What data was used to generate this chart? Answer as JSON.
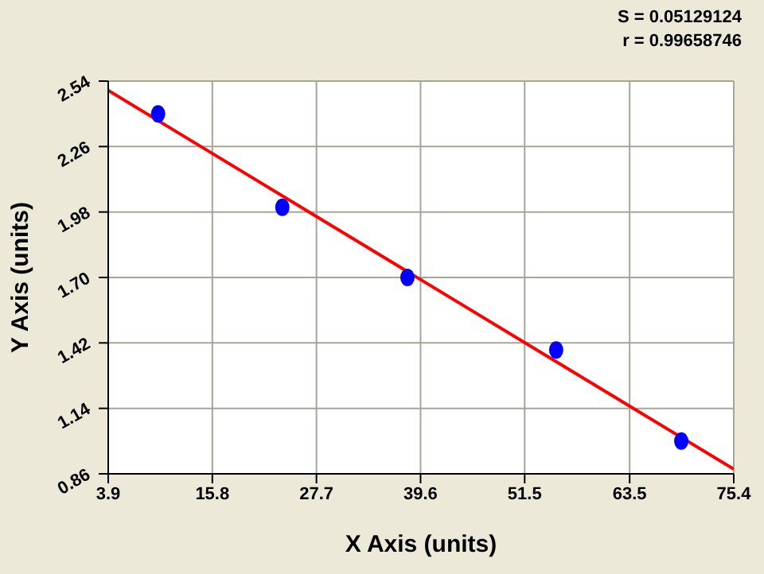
{
  "chart_data": {
    "type": "scatter",
    "xlabel": "X Axis (units)",
    "ylabel": "Y Axis (units)",
    "annotations": [
      "S = 0.05129124",
      "r = 0.99658746"
    ],
    "xlim": [
      3.9,
      75.4
    ],
    "xticks": [
      3.9,
      15.8,
      27.7,
      39.6,
      51.5,
      63.5,
      75.4
    ],
    "ylim": [
      0.86,
      2.54
    ],
    "yticks": [
      0.86,
      1.14,
      1.42,
      {
        "value": 1.7,
        "label": "1.70"
      },
      1.98,
      2.26,
      2.54
    ],
    "grid": true,
    "series": [
      {
        "color": "#0000ff",
        "marker": "circle",
        "x": [
          9.6,
          23.8,
          38.1,
          55.1,
          69.4
        ],
        "values": [
          2.4,
          2.0,
          1.7,
          1.39,
          1.0
        ]
      },
      {
        "type": "line",
        "color": "#ff0000",
        "line_style": "solid",
        "marker": "none",
        "x": [
          3.9,
          75.4
        ],
        "values": [
          2.5,
          0.88
        ]
      }
    ]
  }
}
